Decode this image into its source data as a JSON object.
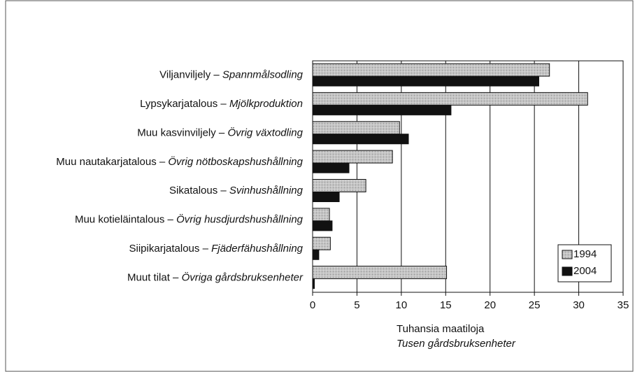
{
  "chart_data": {
    "type": "bar",
    "orientation": "horizontal",
    "categories": [
      "Viljanviljely – Spannmålsodling",
      "Lypsykarjatalous – Mjölkproduktion",
      "Muu kasvinviljely – Övrig växtodling",
      "Muu nautakarjatalous – Övrig nötboskapshushållning",
      "Sikatalous – Svinhushållning",
      "Muu kotieläintalous  – Övrig husdjurdshushållning",
      "Siipikarjatalous – Fjäderfähushållning",
      "Muut tilat – Övriga gårdsbruksenheter"
    ],
    "series": [
      {
        "name": "1994",
        "color": "#c4c4c4",
        "values": [
          26.7,
          31.0,
          9.8,
          9.0,
          6.0,
          1.9,
          2.0,
          15.1
        ]
      },
      {
        "name": "2004",
        "color": "#111111",
        "values": [
          25.5,
          15.6,
          10.8,
          4.1,
          3.0,
          2.2,
          0.7,
          0.2
        ]
      }
    ],
    "xlim": [
      0,
      35
    ],
    "xticks": [
      0,
      5,
      10,
      15,
      20,
      25,
      30,
      35
    ],
    "grid": true,
    "legend": "lower right",
    "xlabel": [
      "Tuhansia maatiloja",
      "Tusen gårdsbruksenheter"
    ]
  }
}
